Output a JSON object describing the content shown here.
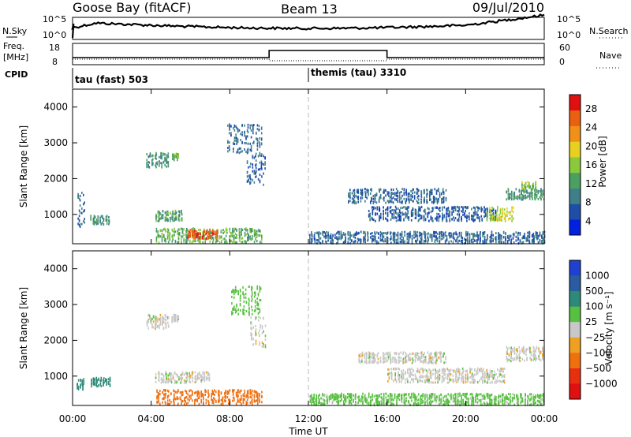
{
  "header": {
    "station": "Goose Bay (fitACF)",
    "beam": "Beam 13",
    "date": "09/Jul/2010"
  },
  "strip_panels": {
    "nsky_label": "N.Sky",
    "nsearch_label": "N.Search",
    "freq_label_line1": "Freq.",
    "freq_label_line2": "[MHz]",
    "nave_label": "Nave",
    "cpid_label": "CPID",
    "noise_ticks": [
      "10^5",
      "10^0"
    ],
    "freq_ticks": [
      "18",
      "8"
    ],
    "nave_ticks": [
      "60",
      "0"
    ],
    "cpid_segments": [
      {
        "label": "tau (fast) 503",
        "start_hour": 0
      },
      {
        "label": "themis (tau) 3310",
        "start_hour": 12
      }
    ]
  },
  "colors": {
    "axis": "#000000",
    "dashed_marker": "#bbbbbb"
  },
  "chart_data": [
    {
      "type": "heatmap",
      "title": "",
      "xlabel": "Time UT",
      "ylabel": "Slant Range [km]",
      "xlim": [
        0,
        24
      ],
      "ylim": [
        180,
        4500
      ],
      "x_ticks": [
        "00:00",
        "04:00",
        "08:00",
        "12:00",
        "16:00",
        "20:00",
        "00:00"
      ],
      "y_ticks": [
        1000,
        2000,
        3000,
        4000
      ],
      "colorbar": {
        "label": "Power [dB]",
        "ticks": [
          4,
          8,
          12,
          16,
          20,
          24,
          28
        ],
        "range": [
          0,
          30
        ],
        "colors": [
          "#0022e0",
          "#1f4ea8",
          "#3f7f88",
          "#4aa060",
          "#8ac83c",
          "#e8d020",
          "#f09018",
          "#e86010",
          "#e01010"
        ]
      },
      "blobs": [
        {
          "t0": 0.2,
          "t1": 0.6,
          "r0": 600,
          "r1": 1600,
          "value": 7
        },
        {
          "t0": 0.9,
          "t1": 1.9,
          "r0": 700,
          "r1": 950,
          "value": 10
        },
        {
          "t0": 3.7,
          "t1": 4.9,
          "r0": 2300,
          "r1": 2700,
          "value": 10
        },
        {
          "t0": 4.2,
          "t1": 5.6,
          "r0": 800,
          "r1": 1100,
          "value": 12
        },
        {
          "t0": 5.0,
          "t1": 5.4,
          "r0": 2500,
          "r1": 2700,
          "value": 14
        },
        {
          "t0": 4.2,
          "t1": 9.6,
          "r0": 200,
          "r1": 600,
          "value": 13
        },
        {
          "t0": 5.8,
          "t1": 7.4,
          "r0": 300,
          "r1": 550,
          "value": 27
        },
        {
          "t0": 7.8,
          "t1": 9.6,
          "r0": 2700,
          "r1": 3500,
          "value": 7
        },
        {
          "t0": 8.8,
          "t1": 9.8,
          "r0": 1800,
          "r1": 2700,
          "value": 6
        },
        {
          "t0": 12.0,
          "t1": 24.0,
          "r0": 180,
          "r1": 500,
          "value": 7
        },
        {
          "t0": 14.0,
          "t1": 19.0,
          "r0": 1300,
          "r1": 1700,
          "value": 7
        },
        {
          "t0": 15.0,
          "t1": 21.5,
          "r0": 800,
          "r1": 1200,
          "value": 6
        },
        {
          "t0": 21.0,
          "t1": 22.4,
          "r0": 800,
          "r1": 1200,
          "value": 17
        },
        {
          "t0": 22.0,
          "t1": 24.0,
          "r0": 1400,
          "r1": 1700,
          "value": 11
        },
        {
          "t0": 22.8,
          "t1": 23.6,
          "r0": 1700,
          "r1": 1900,
          "value": 15
        }
      ]
    },
    {
      "type": "heatmap",
      "title": "",
      "xlabel": "Time UT",
      "ylabel": "Slant Range [km]",
      "xlim": [
        0,
        24
      ],
      "ylim": [
        180,
        4500
      ],
      "x_ticks": [
        "00:00",
        "04:00",
        "08:00",
        "12:00",
        "16:00",
        "20:00",
        "00:00"
      ],
      "y_ticks": [
        1000,
        2000,
        3000,
        4000
      ],
      "colorbar": {
        "label": "Velocity [m s⁻¹]",
        "ticks": [
          "1000",
          "500",
          "100",
          "25",
          "−25",
          "−100",
          "−500",
          "−1000"
        ],
        "colors": [
          "#2040d0",
          "#2a5ca0",
          "#2e8a78",
          "#58c040",
          "#c8c8c8",
          "#f0a020",
          "#f07010",
          "#e83010",
          "#e01010"
        ]
      },
      "blobs": [
        {
          "t0": 0.2,
          "t1": 0.6,
          "r0": 600,
          "r1": 900,
          "value": 300
        },
        {
          "t0": 0.9,
          "t1": 1.9,
          "r0": 700,
          "r1": 950,
          "value": 300
        },
        {
          "t0": 3.7,
          "t1": 4.9,
          "r0": 2300,
          "r1": 2700,
          "value": 0
        },
        {
          "t0": 4.2,
          "t1": 7.0,
          "r0": 800,
          "r1": 1100,
          "value": 0
        },
        {
          "t0": 5.0,
          "t1": 5.4,
          "r0": 2500,
          "r1": 2700,
          "value": 0
        },
        {
          "t0": 4.2,
          "t1": 9.6,
          "r0": 200,
          "r1": 600,
          "value": -150
        },
        {
          "t0": 8.0,
          "t1": 9.6,
          "r0": 2700,
          "r1": 3500,
          "value": 60
        },
        {
          "t0": 9.0,
          "t1": 9.8,
          "r0": 1800,
          "r1": 2700,
          "value": 0
        },
        {
          "t0": 12.0,
          "t1": 24.0,
          "r0": 180,
          "r1": 500,
          "value": 50
        },
        {
          "t0": 14.5,
          "t1": 19.0,
          "r0": 1350,
          "r1": 1650,
          "value": 0
        },
        {
          "t0": 16.0,
          "t1": 22.0,
          "r0": 800,
          "r1": 1200,
          "value": 0
        },
        {
          "t0": 22.0,
          "t1": 24.0,
          "r0": 1400,
          "r1": 1800,
          "value": 0
        }
      ]
    }
  ]
}
